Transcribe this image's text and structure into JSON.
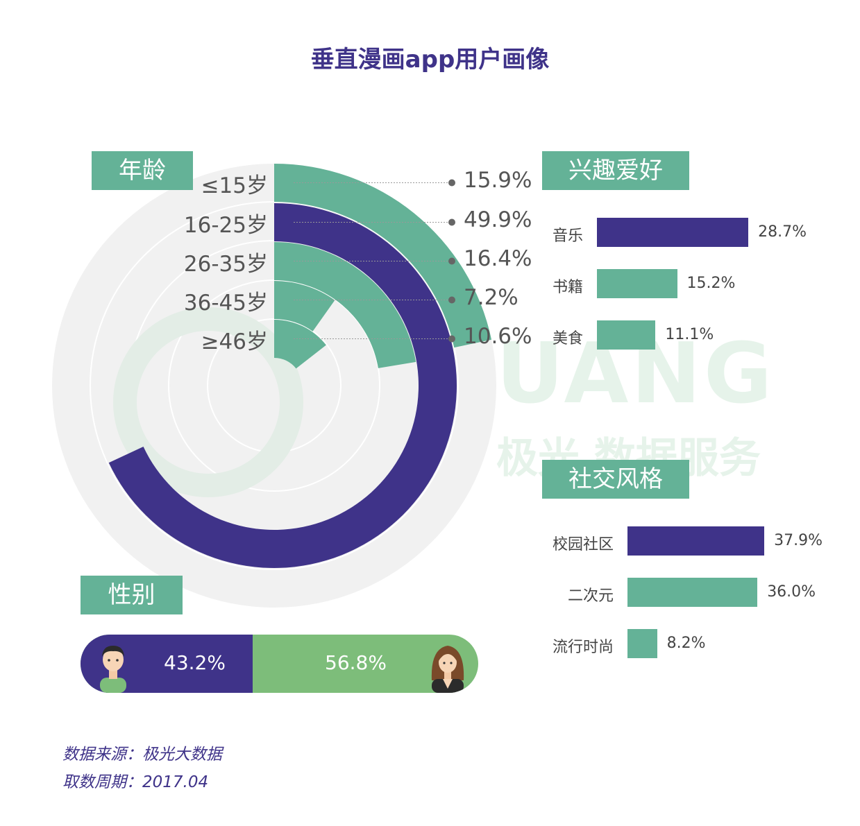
{
  "title": "垂直漫画app用户画像",
  "watermark": {
    "brand": "JIGUANG",
    "tagline": "极光 数据服务"
  },
  "sections": {
    "age": "年龄",
    "interests": "兴趣爱好",
    "social": "社交风格",
    "gender": "性别"
  },
  "colors": {
    "green": "#64b297",
    "purple": "#3f3389",
    "light_green": "#7dbd7a",
    "ring_bg": "#f1f1f1"
  },
  "chart_data": [
    {
      "type": "bar",
      "subtype": "radial",
      "title": "年龄",
      "categories": [
        "≤15岁",
        "16-25岁",
        "26-35岁",
        "36-45岁",
        "≥46岁"
      ],
      "values": [
        15.9,
        49.9,
        16.4,
        7.2,
        10.6
      ],
      "value_labels": [
        "15.9%",
        "49.9%",
        "16.4%",
        "7.2%",
        "10.6%"
      ],
      "colors": [
        "#64b297",
        "#3f3389",
        "#64b297",
        "#64b297",
        "#64b297"
      ]
    },
    {
      "type": "bar",
      "orientation": "horizontal",
      "title": "兴趣爱好",
      "categories": [
        "音乐",
        "书籍",
        "美食"
      ],
      "values": [
        28.7,
        15.2,
        11.1
      ],
      "value_labels": [
        "28.7%",
        "15.2%",
        "11.1%"
      ],
      "colors": [
        "#3f3389",
        "#64b297",
        "#64b297"
      ]
    },
    {
      "type": "bar",
      "orientation": "horizontal",
      "title": "社交风格",
      "categories": [
        "校园社区",
        "二次元",
        "流行时尚"
      ],
      "values": [
        37.9,
        36.0,
        8.2
      ],
      "value_labels": [
        "37.9%",
        "36.0%",
        "8.2%"
      ],
      "colors": [
        "#3f3389",
        "#64b297",
        "#64b297"
      ]
    },
    {
      "type": "bar",
      "subtype": "stacked-100",
      "title": "性别",
      "categories": [
        "male",
        "female"
      ],
      "values": [
        43.2,
        56.8
      ],
      "value_labels": [
        "43.2%",
        "56.8%"
      ],
      "colors": [
        "#3f3389",
        "#7dbd7a"
      ],
      "icons": [
        "male-avatar-icon",
        "female-avatar-icon"
      ]
    }
  ],
  "footer": {
    "source": "数据来源：极光大数据",
    "period": "取数周期：2017.04"
  }
}
